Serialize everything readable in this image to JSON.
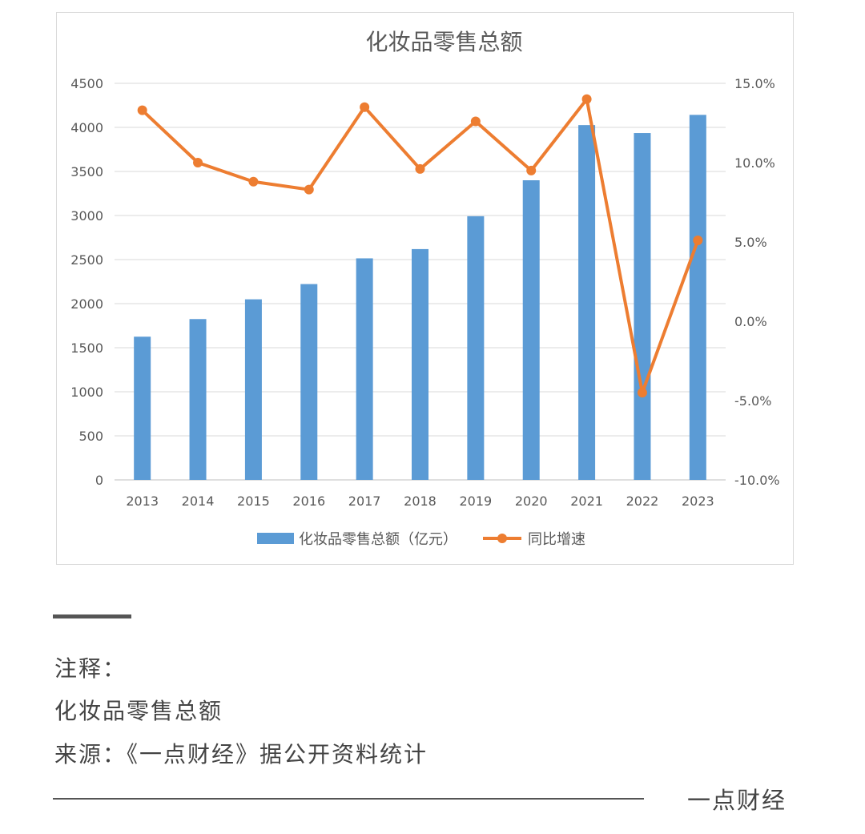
{
  "chart_data": {
    "type": "bar+line",
    "title": "化妆品零售总额",
    "categories": [
      "2013",
      "2014",
      "2015",
      "2016",
      "2017",
      "2018",
      "2019",
      "2020",
      "2021",
      "2022",
      "2023"
    ],
    "series": [
      {
        "name": "化妆品零售总额（亿元）",
        "type": "bar",
        "axis": "left",
        "color": "#5b9bd5",
        "values": [
          1625,
          1825,
          2049,
          2222,
          2514,
          2619,
          2992,
          3400,
          4026,
          3936,
          4142
        ]
      },
      {
        "name": "同比增速",
        "type": "line",
        "axis": "right",
        "color": "#ed7d31",
        "values": [
          13.3,
          10.0,
          8.8,
          8.3,
          13.5,
          9.6,
          12.6,
          9.5,
          14.0,
          -4.5,
          5.1
        ]
      }
    ],
    "yleft": {
      "min": 0,
      "max": 4500,
      "ticks": [
        "0",
        "500",
        "1000",
        "1500",
        "2000",
        "2500",
        "3000",
        "3500",
        "4000",
        "4500"
      ]
    },
    "yright": {
      "min": -10,
      "max": 15,
      "ticks": [
        "-10.0%",
        "-5.0%",
        "0.0%",
        "5.0%",
        "10.0%",
        "15.0%"
      ]
    },
    "grid": true,
    "legend_position": "bottom"
  },
  "notes": {
    "label": "注释：",
    "subject": "化妆品零售总额",
    "source": "来源：《一点财经》据公开资料统计"
  },
  "brand": "一点财经"
}
